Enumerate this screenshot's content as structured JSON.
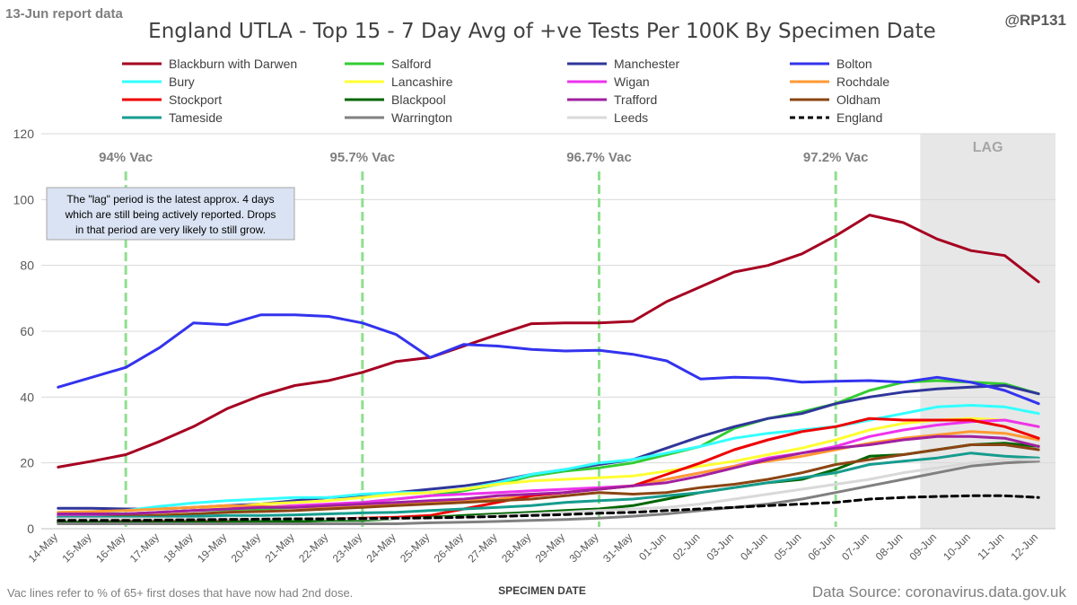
{
  "header": {
    "report_label": "13-Jun report data",
    "handle": "@RP131"
  },
  "footer": {
    "vac_note": "Vac lines refer to % of 65+ first doses that have now had 2nd dose.",
    "source": "Data Source: coronavirus.data.gov.uk"
  },
  "annotation": {
    "lines": [
      "The \"lag\" period is the latest approx. 4 days",
      "which are still being actively reported.  Drops",
      "in that period are very likely to still grow."
    ]
  },
  "chart_data": {
    "type": "line",
    "title": "England UTLA - Top 15 - 7 Day Avg of +ve Tests Per 100K By Specimen Date",
    "xlabel": "SPECIMEN DATE",
    "ylabel": "",
    "ylim": [
      0,
      120
    ],
    "yticks": [
      0,
      20,
      40,
      60,
      80,
      100,
      120
    ],
    "grid": "horizontal",
    "legend_position": "top",
    "categories": [
      "14-May",
      "15-May",
      "16-May",
      "17-May",
      "18-May",
      "19-May",
      "20-May",
      "21-May",
      "22-May",
      "23-May",
      "24-May",
      "25-May",
      "26-May",
      "27-May",
      "28-May",
      "29-May",
      "30-May",
      "31-May",
      "01-Jun",
      "02-Jun",
      "03-Jun",
      "04-Jun",
      "05-Jun",
      "06-Jun",
      "07-Jun",
      "08-Jun",
      "09-Jun",
      "10-Jun",
      "11-Jun",
      "12-Jun"
    ],
    "lag": {
      "label": "LAG",
      "start": "09-Jun",
      "end": "12-Jun"
    },
    "vac_lines": [
      {
        "label": "94% Vac",
        "at": "16-May"
      },
      {
        "label": "95.7% Vac",
        "at": "23-May"
      },
      {
        "label": "96.7% Vac",
        "at": "30-May"
      },
      {
        "label": "97.2% Vac",
        "at": "06-Jun"
      }
    ],
    "series": [
      {
        "name": "Blackburn with Darwen",
        "color": "#a50021",
        "values": [
          18.7,
          20.5,
          22.5,
          26.5,
          31,
          36.5,
          40.5,
          43.5,
          45,
          47.5,
          50.8,
          52,
          55.5,
          59,
          62.3,
          62.5,
          62.5,
          63,
          69,
          73.5,
          78,
          80,
          83.5,
          89,
          95.3,
          93,
          88,
          84.5,
          83,
          75
        ]
      },
      {
        "name": "Salford",
        "color": "#33cc33",
        "values": [
          4,
          4.2,
          4.5,
          5,
          5.5,
          5.8,
          6,
          6.5,
          7,
          8,
          9,
          10,
          11.5,
          13.5,
          16,
          17.5,
          18.5,
          20,
          22.5,
          25,
          30.5,
          33.5,
          35.5,
          38,
          42,
          44.5,
          45,
          44.5,
          44,
          41
        ]
      },
      {
        "name": "Manchester",
        "color": "#2f3699",
        "values": [
          6.2,
          6.2,
          6,
          6,
          6.5,
          7,
          7.5,
          8.5,
          9.5,
          10,
          11,
          12,
          13,
          14.5,
          16.5,
          18,
          19.5,
          21,
          24.5,
          28,
          31,
          33.5,
          35,
          38,
          40,
          41.5,
          42.5,
          43,
          43.5,
          41
        ]
      },
      {
        "name": "Bolton",
        "color": "#3333ee",
        "values": [
          43,
          46,
          49,
          55,
          62.5,
          62,
          65,
          65,
          64.5,
          62.5,
          59,
          52,
          56,
          55.5,
          54.5,
          54,
          54.2,
          53,
          51,
          45.5,
          46,
          45.8,
          44.5,
          44.8,
          45,
          44.5,
          46,
          44.5,
          42,
          38
        ]
      },
      {
        "name": "Bury",
        "color": "#33ffff",
        "values": [
          5,
          5,
          5.5,
          6.8,
          7.8,
          8.5,
          9,
          9.5,
          9.5,
          10.5,
          11,
          11,
          12,
          14,
          16.5,
          18,
          20,
          21,
          23,
          25,
          27.5,
          29,
          30,
          31,
          33,
          35,
          37,
          37.5,
          37,
          35
        ]
      },
      {
        "name": "Lancashire",
        "color": "#ffff33",
        "values": [
          3,
          3.2,
          3.5,
          4.5,
          5.5,
          6.5,
          7.5,
          8,
          8.5,
          9.5,
          10.5,
          11,
          12,
          13.5,
          14.5,
          15,
          15.5,
          16,
          17.5,
          19,
          20.5,
          22.5,
          24.5,
          27,
          30,
          32,
          33,
          33.5,
          33,
          31
        ]
      },
      {
        "name": "Wigan",
        "color": "#ee33ee",
        "values": [
          4,
          4.2,
          4.5,
          5,
          5.5,
          6,
          6.5,
          7,
          7.5,
          8,
          9,
          10,
          10.5,
          11,
          11.5,
          12,
          12.5,
          13,
          15,
          17,
          19,
          21.5,
          23,
          25,
          28,
          30,
          31.5,
          32.5,
          33,
          31
        ]
      },
      {
        "name": "Rochdale",
        "color": "#ff9933",
        "values": [
          5,
          5.2,
          5.5,
          6,
          6.5,
          7,
          6.8,
          6.5,
          6.5,
          7,
          7.5,
          8,
          8.5,
          9,
          10,
          11,
          12,
          13,
          15,
          17,
          19,
          20.5,
          22,
          24,
          26,
          27.5,
          28.5,
          29.5,
          29,
          27
        ]
      },
      {
        "name": "Stockport",
        "color": "#ee0000",
        "values": [
          2,
          2,
          2.2,
          2.5,
          2.5,
          2.8,
          2.8,
          2.8,
          3,
          3.2,
          3.5,
          4,
          6,
          8,
          10,
          11,
          12,
          13,
          16.5,
          20,
          24,
          27,
          29.5,
          31,
          33.5,
          33,
          33,
          33,
          31,
          27.5
        ]
      },
      {
        "name": "Blackpool",
        "color": "#006600",
        "values": [
          2,
          2,
          2,
          2,
          2,
          2,
          2.2,
          2.2,
          2.5,
          2.5,
          3,
          3.5,
          4,
          4.5,
          5,
          5.5,
          6,
          7,
          9,
          11,
          12.5,
          14,
          15,
          18,
          22,
          22.5,
          24,
          25.5,
          26,
          25
        ]
      },
      {
        "name": "Trafford",
        "color": "#a020a0",
        "values": [
          4.5,
          4.5,
          4.5,
          5,
          5.5,
          6,
          6.5,
          6.5,
          7,
          7.5,
          8,
          8.5,
          9,
          10,
          10.5,
          11,
          12,
          13,
          14,
          16,
          18.5,
          21,
          23,
          24.5,
          25.5,
          27,
          28,
          28,
          27.5,
          25
        ]
      },
      {
        "name": "Oldham",
        "color": "#8b4513",
        "values": [
          3.5,
          3.5,
          3.8,
          4,
          4.5,
          5,
          5.2,
          5.5,
          6,
          6.5,
          7,
          7.5,
          8,
          8.5,
          9,
          10,
          11,
          10.5,
          11,
          12.5,
          13.5,
          15,
          17,
          19.5,
          21,
          22.5,
          24,
          25.5,
          25.5,
          24
        ]
      },
      {
        "name": "Tameside",
        "color": "#169c8e",
        "values": [
          3.5,
          3.5,
          3.5,
          3.5,
          3.8,
          4,
          4,
          4.2,
          4.5,
          4.8,
          5,
          5.5,
          6,
          6.5,
          7,
          8,
          8.5,
          9,
          10,
          11,
          12.5,
          14,
          15.5,
          17,
          19.5,
          20.5,
          21.5,
          23,
          22,
          21.5
        ]
      },
      {
        "name": "Warrington",
        "color": "#808080",
        "values": [
          1.5,
          1.5,
          1.5,
          1.5,
          1.5,
          1.5,
          1.5,
          1.5,
          1.5,
          1.5,
          1.5,
          1.8,
          2,
          2.2,
          2.5,
          2.8,
          3.2,
          3.8,
          4.5,
          5.5,
          6.5,
          7.5,
          9,
          11,
          13,
          15,
          17,
          19,
          20,
          20.5
        ]
      },
      {
        "name": "Leeds",
        "color": "#d9d9d9",
        "values": [
          3,
          3,
          3,
          3,
          3,
          3,
          3,
          3,
          3,
          3,
          3,
          3.2,
          3.5,
          4,
          4.5,
          5,
          5.5,
          6,
          6.5,
          7.5,
          9,
          10.5,
          12,
          13.5,
          15,
          17,
          18.5,
          20,
          21,
          21
        ]
      },
      {
        "name": "England",
        "color": "#000000",
        "dashed": true,
        "values": [
          2.5,
          2.5,
          2.5,
          2.6,
          2.7,
          2.8,
          2.9,
          3,
          3,
          3.1,
          3.2,
          3.3,
          3.5,
          3.7,
          4,
          4.3,
          4.7,
          5,
          5.5,
          6,
          6.5,
          7,
          7.5,
          8,
          9,
          9.5,
          9.8,
          10,
          10,
          9.5
        ]
      }
    ]
  }
}
